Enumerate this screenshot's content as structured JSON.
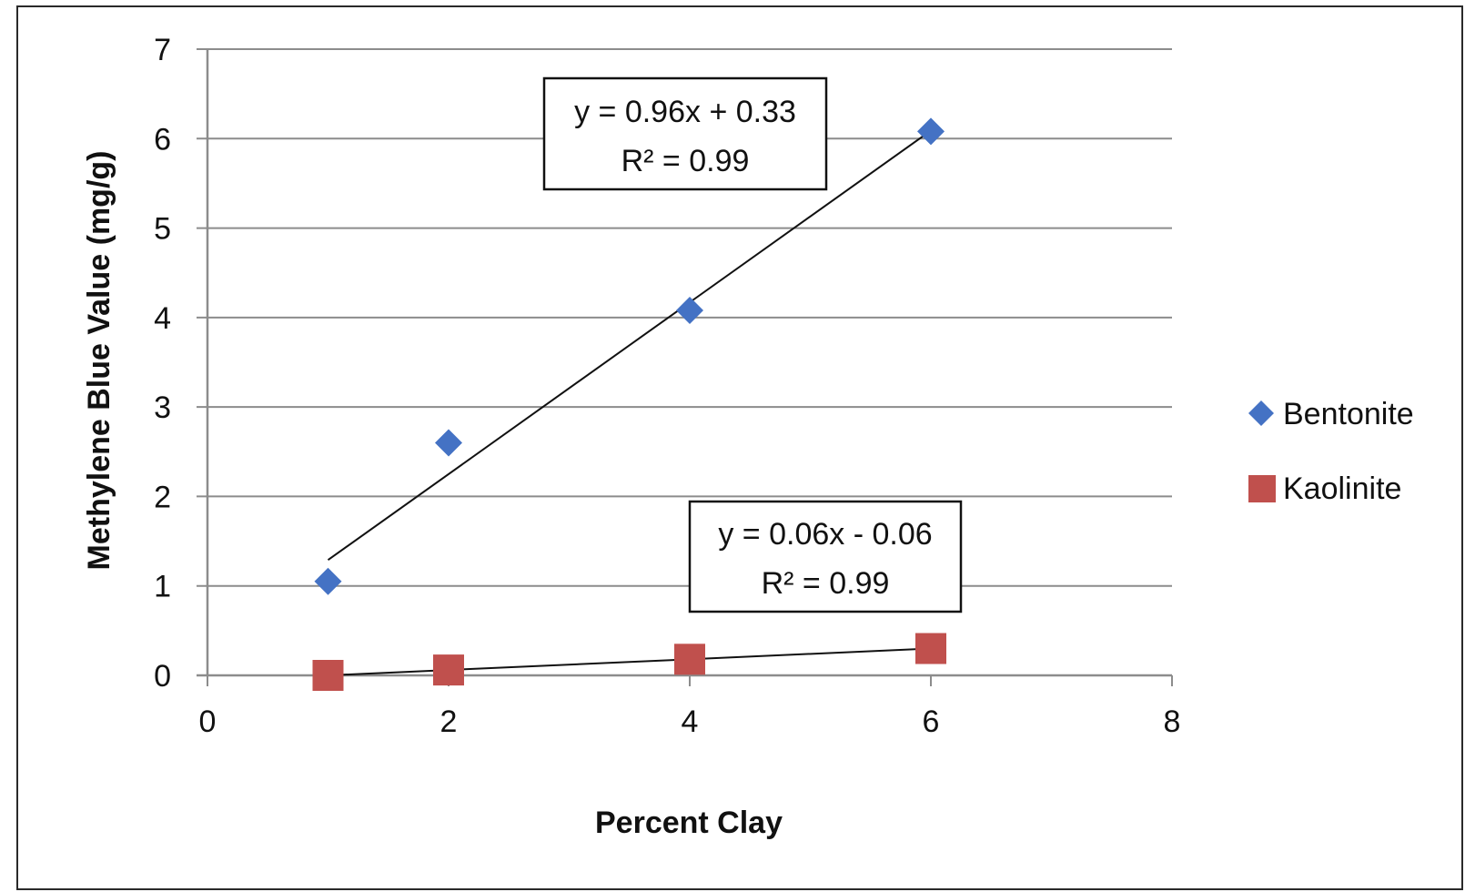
{
  "chart_data": {
    "type": "scatter",
    "xlabel": "Percent Clay",
    "ylabel": "Methylene Blue Value (mg/g)",
    "xlim": [
      0,
      8
    ],
    "ylim": [
      0,
      7
    ],
    "x_ticks": [
      "0",
      "2",
      "4",
      "6",
      "8"
    ],
    "y_ticks": [
      "0",
      "1",
      "2",
      "3",
      "4",
      "5",
      "6",
      "7"
    ],
    "grid": "horizontal",
    "legend_position": "right",
    "series": [
      {
        "name": "Bentonite",
        "marker": "diamond",
        "color": "#4472C4",
        "x": [
          1,
          2,
          4,
          6
        ],
        "y": [
          1.05,
          2.6,
          4.08,
          6.08
        ],
        "trendline": {
          "slope": 0.96,
          "intercept": 0.33,
          "x_range": [
            1,
            6
          ]
        },
        "equation": "y = 0.96x + 0.33",
        "r_squared": "R² = 0.99"
      },
      {
        "name": "Kaolinite",
        "marker": "square",
        "color": "#C0504D",
        "x": [
          1,
          2,
          4,
          6
        ],
        "y": [
          0.0,
          0.06,
          0.18,
          0.3
        ],
        "trendline": {
          "slope": 0.06,
          "intercept": -0.06,
          "x_range": [
            1,
            6
          ]
        },
        "equation": "y = 0.06x - 0.06",
        "r_squared": "R² = 0.99"
      }
    ]
  }
}
